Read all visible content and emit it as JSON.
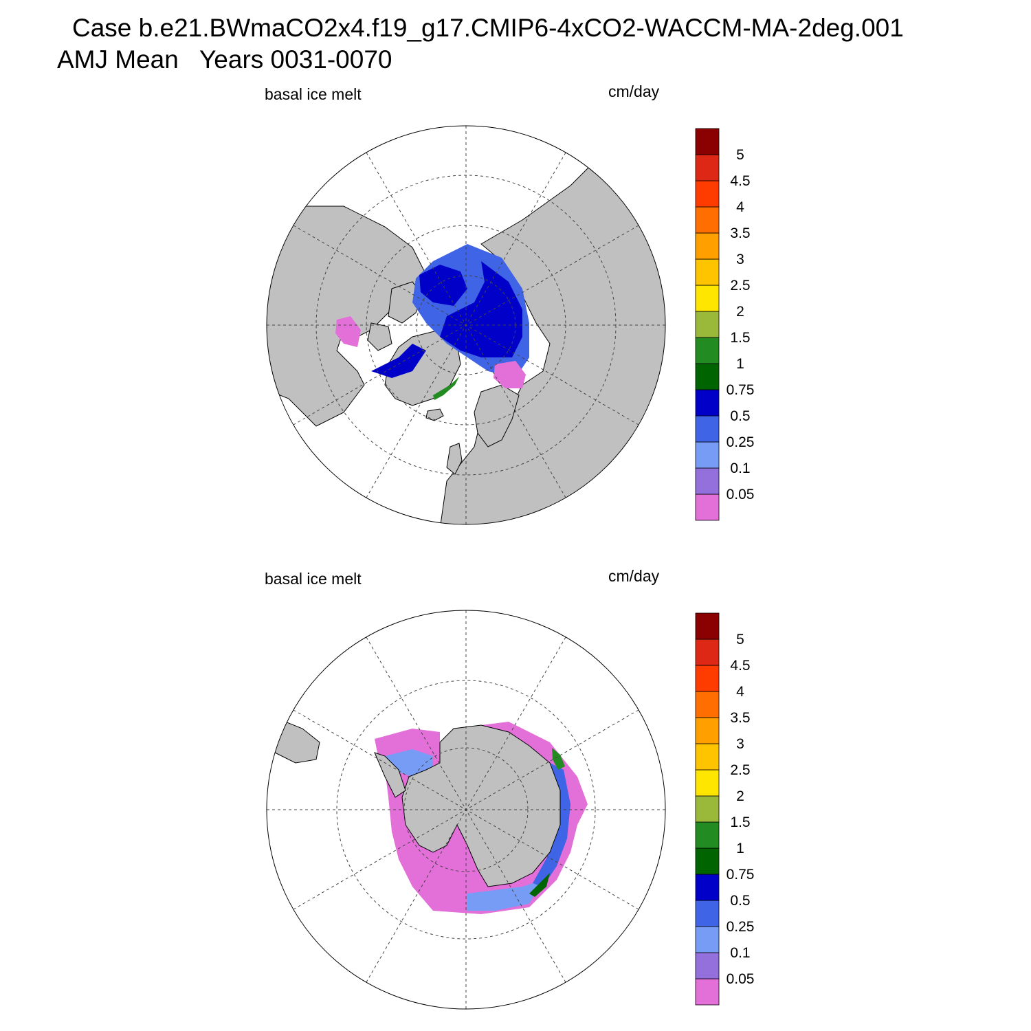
{
  "title_line1": "Case b.e21.BWmaCO2x4.f19_g17.CMIP6-4xCO2-WACCM-MA-2deg.001",
  "title_line2": "AMJ Mean   Years 0031-0070",
  "panels": [
    {
      "id": "north",
      "left_label": "basal ice melt",
      "right_label": "cm/day"
    },
    {
      "id": "south",
      "left_label": "basal ice melt",
      "right_label": "cm/day"
    }
  ],
  "colorbar": {
    "levels": [
      "0.05",
      "0.1",
      "0.25",
      "0.5",
      "0.75",
      "1",
      "1.5",
      "2",
      "2.5",
      "3",
      "3.5",
      "4",
      "4.5",
      "5"
    ],
    "colors": [
      "#e36fd9",
      "#9470dc",
      "#779cf5",
      "#4064e6",
      "#0000c8",
      "#006400",
      "#228b22",
      "#9ab83a",
      "#ffe600",
      "#ffc400",
      "#ffa000",
      "#ff6e00",
      "#ff3c00",
      "#dc2814",
      "#8b0000"
    ]
  },
  "map_colors": {
    "land": "#c0c0c0",
    "ocean": "#ffffff"
  }
}
